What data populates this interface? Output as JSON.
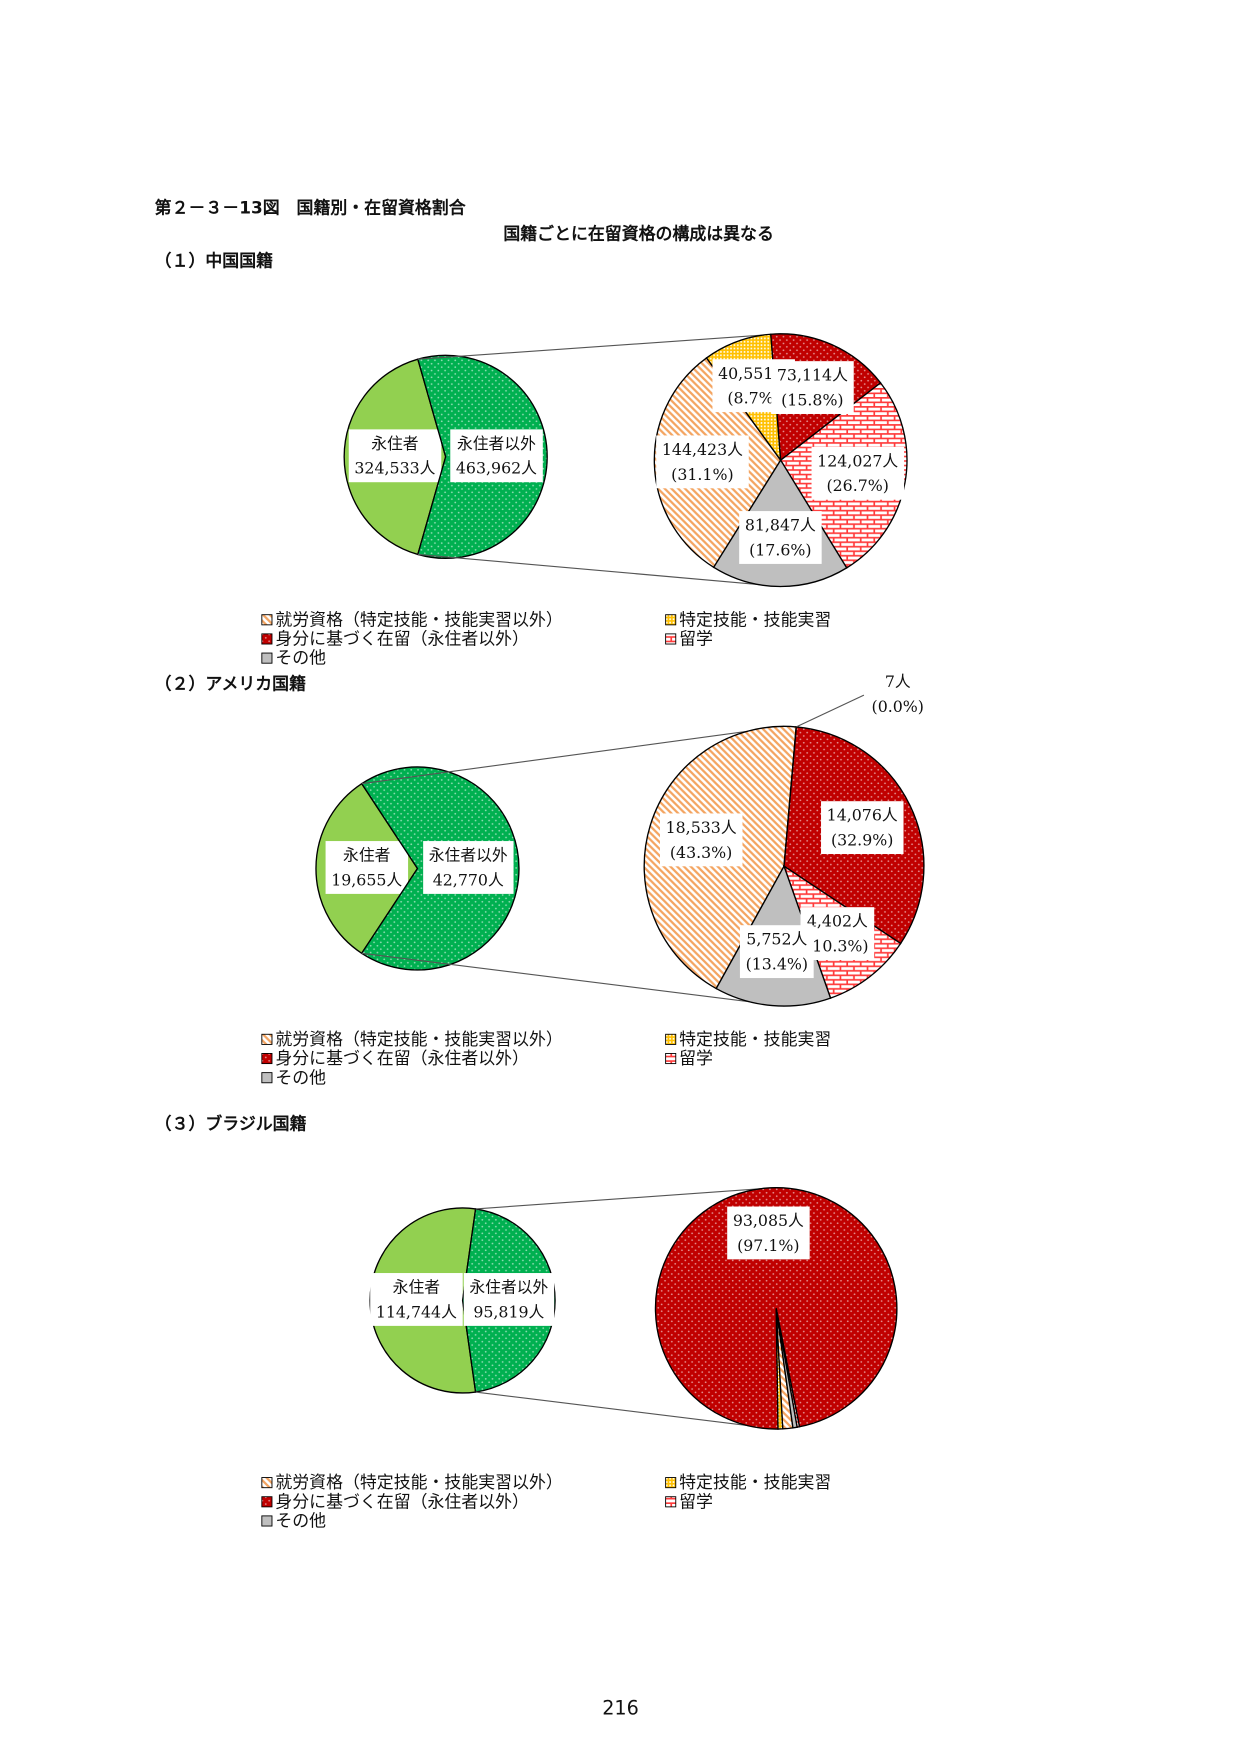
{
  "header": {
    "title": "第２－３－13図　国籍別・在留資格割合",
    "subtitle": "国籍ごとに在留資格の構成は異なる"
  },
  "chart_data": [
    {
      "type": "pie",
      "title": "（１）中国国籍",
      "residence": {
        "categories": [
          "永住者",
          "永住者以外"
        ],
        "values": [
          324533,
          463962
        ],
        "value_labels": [
          "324,533人",
          "463,962人"
        ],
        "colors": [
          "#92d050",
          "#00b050"
        ]
      },
      "categories": [
        "就労資格（特定技能・技能実習以外）",
        "特定技能・技能実習",
        "身分に基づく在留（永住者以外）",
        "留学",
        "その他"
      ],
      "values": [
        144423,
        40551,
        73114,
        124027,
        81847
      ],
      "value_labels": [
        "144,423人",
        "40,551人",
        "73,114人",
        "124,027人",
        "81,847人"
      ],
      "percents": [
        31.1,
        8.7,
        15.8,
        26.7,
        17.6
      ],
      "percent_labels": [
        "(31.1%)",
        "(8.7%)",
        "(15.8%)",
        "(26.7%)",
        "(17.6%)"
      ],
      "colors": [
        "#f4a460",
        "#ffc000",
        "#c00000",
        "#ff3b3b",
        "#bfbfbf"
      ]
    },
    {
      "type": "pie",
      "title": "（２）アメリカ国籍",
      "residence": {
        "categories": [
          "永住者",
          "永住者以外"
        ],
        "values": [
          19655,
          42770
        ],
        "value_labels": [
          "19,655人",
          "42,770人"
        ],
        "colors": [
          "#92d050",
          "#00b050"
        ]
      },
      "categories": [
        "就労資格（特定技能・技能実習以外）",
        "特定技能・技能実習",
        "身分に基づく在留（永住者以外）",
        "留学",
        "その他"
      ],
      "values": [
        18533,
        7,
        14076,
        4402,
        5752
      ],
      "value_labels": [
        "18,533人",
        "7人",
        "14,076人",
        "4,402人",
        "5,752人"
      ],
      "percents": [
        43.3,
        0.0,
        32.9,
        10.3,
        13.4
      ],
      "percent_labels": [
        "(43.3%)",
        "(0.0%)",
        "(32.9%)",
        "(10.3%)",
        "(13.4%)"
      ],
      "colors": [
        "#f4a460",
        "#ffc000",
        "#c00000",
        "#ff3b3b",
        "#bfbfbf"
      ]
    },
    {
      "type": "pie",
      "title": "（３）ブラジル国籍",
      "residence": {
        "categories": [
          "永住者",
          "永住者以外"
        ],
        "values": [
          114744,
          95819
        ],
        "value_labels": [
          "114,744人",
          "95,819人"
        ],
        "colors": [
          "#92d050",
          "#00b050"
        ]
      },
      "categories": [
        "就労資格（特定技能・技能実習以外）",
        "特定技能・技能実習",
        "身分に基づく在留（永住者以外）",
        "留学",
        "その他"
      ],
      "values": [
        1300,
        600,
        93085,
        300,
        534
      ],
      "value_labels": [
        null,
        null,
        "93,085人",
        null,
        null
      ],
      "percents": [
        1.4,
        0.6,
        97.1,
        0.3,
        0.6
      ],
      "percent_labels": [
        null,
        null,
        "(97.1%)",
        null,
        null
      ],
      "colors": [
        "#f4a460",
        "#ffc000",
        "#c00000",
        "#ff3b3b",
        "#bfbfbf"
      ]
    }
  ],
  "page_number": "216"
}
